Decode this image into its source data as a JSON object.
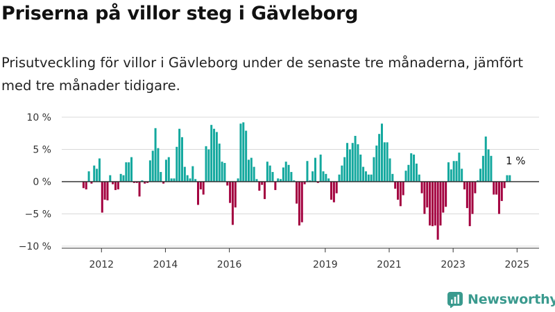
{
  "title": "Priserna på villor steg i Gävleborg",
  "subtitle": "Prisutveckling för villor i Gävleborg under de senaste tre månaderna, jämfört med tre månader tidigare.",
  "brand": "Newsworthy",
  "colors": {
    "positive": "#13a89e",
    "negative": "#a3003f",
    "grid": "#d9d9d9",
    "zero_line": "#333333",
    "brand": "#3a9a8e"
  },
  "chart_data": {
    "type": "bar",
    "ylim": [
      -10,
      10
    ],
    "y_ticks": [
      10,
      5,
      0,
      -5,
      -10
    ],
    "y_tick_labels": [
      "10 %",
      "5 %",
      "0 %",
      "−5 %",
      "−10 %"
    ],
    "x_ticks": [
      {
        "year": 2012,
        "label": "2012"
      },
      {
        "year": 2014,
        "label": "2014"
      },
      {
        "year": 2016,
        "label": "2016"
      },
      {
        "year": 2019,
        "label": "2019"
      },
      {
        "year": 2021,
        "label": "2021"
      },
      {
        "year": 2023,
        "label": "2023"
      },
      {
        "year": 2025,
        "label": "2025"
      }
    ],
    "last_value_label": "1 %",
    "start_month": "2011-06",
    "values": [
      -1,
      -1.2,
      1.6,
      -0.3,
      2.5,
      2,
      3.6,
      -4.8,
      -2.8,
      -2.9,
      1,
      -0.4,
      -1.3,
      -1.2,
      1.2,
      1,
      3,
      3,
      3.8,
      -0.2,
      -0.2,
      -2.3,
      0.2,
      -0.3,
      -0.2,
      3.3,
      4.8,
      8.3,
      5.2,
      1.5,
      -0.3,
      3.4,
      3.8,
      0.5,
      0.5,
      5.4,
      8.2,
      6.9,
      2.3,
      1,
      0.5,
      2.4,
      0.4,
      -3.6,
      -1.2,
      -2,
      5.5,
      5,
      8.8,
      8.2,
      7.7,
      5.9,
      3.1,
      2.9,
      -0.6,
      -3.3,
      -6.7,
      -4,
      0.5,
      9,
      9.2,
      7.9,
      3.4,
      3.7,
      2.3,
      0.4,
      -1.4,
      -0.5,
      -2.7,
      3.1,
      2.5,
      1.5,
      -1.3,
      0.5,
      0.4,
      2.2,
      3.1,
      2.6,
      1.5,
      0.2,
      -3.4,
      -6.8,
      -6.3,
      -0.4,
      3.2,
      0.2,
      1.6,
      3.7,
      -0.2,
      4.2,
      1.6,
      1.2,
      0.5,
      -2.8,
      -3.2,
      -1.8,
      1.1,
      2.5,
      3.8,
      6,
      5,
      6,
      7.1,
      5.8,
      4.2,
      2.3,
      1.6,
      1.1,
      1.1,
      3.8,
      5.6,
      7.4,
      9,
      6.1,
      6.1,
      3.6,
      1.2,
      -1.1,
      -2.8,
      -3.8,
      -2.1,
      1.7,
      2.6,
      4.4,
      4.2,
      2.8,
      1.1,
      -1.8,
      -5,
      -4,
      -6.8,
      -6.9,
      -6.8,
      -9,
      -6.8,
      -4.8,
      -3.9,
      3,
      1.9,
      3.2,
      3.2,
      4.5,
      2,
      -1.2,
      -4.1,
      -6.9,
      -5,
      -1.8,
      0.2,
      2,
      4,
      7,
      5,
      4,
      -2,
      -2,
      -5,
      -3,
      -1,
      1,
      1
    ]
  }
}
